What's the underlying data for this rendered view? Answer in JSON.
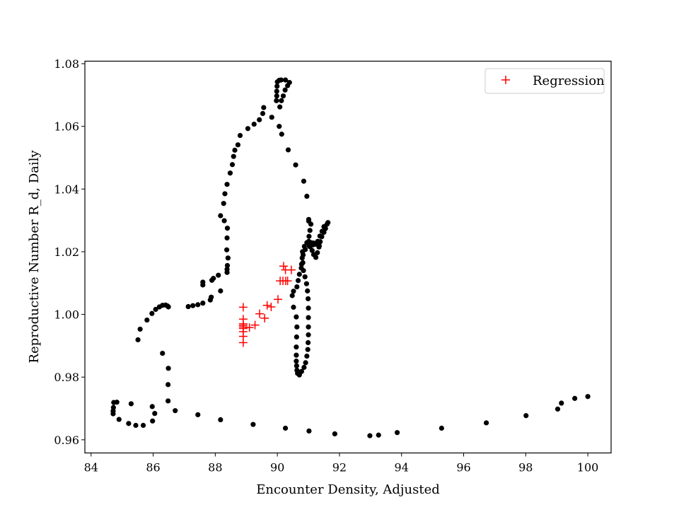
{
  "chart_data": {
    "type": "scatter",
    "title": "",
    "xlabel": "Encounter Density, Adjusted",
    "ylabel": "Reproductive Number R_d, Daily",
    "xlim": [
      83.8,
      100.75
    ],
    "ylim": [
      0.9558,
      1.0808
    ],
    "xticks": [
      84,
      86,
      88,
      90,
      92,
      94,
      96,
      98,
      100
    ],
    "yticks": [
      0.96,
      0.98,
      1.0,
      1.02,
      1.04,
      1.06,
      1.08
    ],
    "xtick_labels": [
      "84",
      "86",
      "88",
      "90",
      "92",
      "94",
      "96",
      "98",
      "100"
    ],
    "ytick_labels": [
      "0.96",
      "0.98",
      "1.00",
      "1.02",
      "1.04",
      "1.06",
      "1.08"
    ],
    "grid": false,
    "legend": {
      "position": "top-right",
      "entries": [
        "Regression"
      ]
    },
    "series": [
      {
        "marker": "dot",
        "color": "#000000",
        "points": [
          [
            100.0,
            0.9738
          ],
          [
            99.58,
            0.9732
          ],
          [
            99.15,
            0.9717
          ],
          [
            99.03,
            0.9698
          ],
          [
            98.01,
            0.9677
          ],
          [
            96.73,
            0.9654
          ],
          [
            95.29,
            0.9637
          ],
          [
            93.86,
            0.9623
          ],
          [
            93.26,
            0.9615
          ],
          [
            92.98,
            0.9613
          ],
          [
            91.85,
            0.9619
          ],
          [
            91.02,
            0.9628
          ],
          [
            90.26,
            0.9637
          ],
          [
            89.22,
            0.9649
          ],
          [
            88.17,
            0.9664
          ],
          [
            87.44,
            0.968
          ],
          [
            86.71,
            0.9693
          ],
          [
            86.48,
            0.9724
          ],
          [
            86.05,
            0.9684
          ],
          [
            85.98,
            0.966
          ],
          [
            85.97,
            0.9706
          ],
          [
            85.68,
            0.9646
          ],
          [
            85.44,
            0.9646
          ],
          [
            85.29,
            0.9715
          ],
          [
            85.21,
            0.9652
          ],
          [
            84.9,
            0.9665
          ],
          [
            84.83,
            0.972
          ],
          [
            84.73,
            0.9719
          ],
          [
            84.72,
            0.9703
          ],
          [
            84.71,
            0.9692
          ],
          [
            84.71,
            0.9683
          ],
          [
            86.48,
            0.9776
          ],
          [
            86.49,
            0.9828
          ],
          [
            86.3,
            0.9876
          ],
          [
            85.51,
            0.9919
          ],
          [
            85.58,
            0.9953
          ],
          [
            85.8,
            0.9982
          ],
          [
            85.96,
            1.0003
          ],
          [
            86.08,
            1.0016
          ],
          [
            86.2,
            1.0024
          ],
          [
            86.3,
            1.0029
          ],
          [
            86.4,
            1.003
          ],
          [
            86.46,
            1.0027
          ],
          [
            86.49,
            1.0024
          ],
          [
            87.13,
            1.0025
          ],
          [
            87.28,
            1.0028
          ],
          [
            87.44,
            1.0031
          ],
          [
            87.6,
            1.0036
          ],
          [
            87.84,
            1.0046
          ],
          [
            87.87,
            1.0055
          ],
          [
            88.17,
            1.0075
          ],
          [
            87.6,
            1.0094
          ],
          [
            87.6,
            1.0103
          ],
          [
            87.89,
            1.0109
          ],
          [
            87.94,
            1.0115
          ],
          [
            88.1,
            1.0125
          ],
          [
            88.38,
            1.0134
          ],
          [
            88.38,
            1.0144
          ],
          [
            88.39,
            1.0156
          ],
          [
            88.41,
            1.018
          ],
          [
            88.37,
            1.0206
          ],
          [
            88.38,
            1.0244
          ],
          [
            88.39,
            1.0275
          ],
          [
            88.29,
            1.0299
          ],
          [
            88.17,
            1.0315
          ],
          [
            88.27,
            1.0354
          ],
          [
            88.31,
            1.0385
          ],
          [
            88.38,
            1.0415
          ],
          [
            88.48,
            1.0451
          ],
          [
            88.55,
            1.0478
          ],
          [
            88.59,
            1.0504
          ],
          [
            88.63,
            1.0524
          ],
          [
            88.73,
            1.0541
          ],
          [
            88.8,
            1.0571
          ],
          [
            89.05,
            1.0593
          ],
          [
            89.25,
            1.0607
          ],
          [
            89.42,
            1.0621
          ],
          [
            89.53,
            1.0641
          ],
          [
            89.56,
            1.066
          ],
          [
            90.06,
            1.06
          ],
          [
            90.14,
            1.0575
          ],
          [
            89.82,
            1.0629
          ],
          [
            89.97,
            1.0682
          ],
          [
            89.98,
            1.0697
          ],
          [
            89.98,
            1.0712
          ],
          [
            89.99,
            1.0728
          ],
          [
            90.0,
            1.0742
          ],
          [
            90.06,
            1.0747
          ],
          [
            90.12,
            1.0748
          ],
          [
            90.26,
            1.0748
          ],
          [
            90.39,
            1.074
          ],
          [
            90.33,
            1.073
          ],
          [
            90.25,
            1.0716
          ],
          [
            90.19,
            1.0697
          ],
          [
            90.13,
            1.0682
          ],
          [
            90.08,
            1.0662
          ],
          [
            90.35,
            1.0525
          ],
          [
            90.59,
            1.0477
          ],
          [
            90.85,
            1.0425
          ],
          [
            90.95,
            1.0377
          ],
          [
            91.01,
            1.0298
          ],
          [
            91.01,
            1.0303
          ],
          [
            91.08,
            1.0288
          ],
          [
            91.05,
            1.0268
          ],
          [
            91.02,
            1.0249
          ],
          [
            91.01,
            1.0233
          ],
          [
            91.05,
            1.0216
          ],
          [
            91.12,
            1.0204
          ],
          [
            91.17,
            1.0191
          ],
          [
            91.24,
            1.0182
          ],
          [
            91.29,
            1.0197
          ],
          [
            91.34,
            1.0215
          ],
          [
            91.38,
            1.0232
          ],
          [
            91.43,
            1.0248
          ],
          [
            91.5,
            1.0262
          ],
          [
            91.55,
            1.0274
          ],
          [
            91.6,
            1.0288
          ],
          [
            91.63,
            1.0293
          ],
          [
            91.5,
            1.028
          ],
          [
            91.44,
            1.0265
          ],
          [
            91.37,
            1.025
          ],
          [
            91.3,
            1.0233
          ],
          [
            91.23,
            1.0224
          ],
          [
            91.16,
            1.0228
          ],
          [
            91.08,
            1.0229
          ],
          [
            90.95,
            1.0229
          ],
          [
            90.87,
            1.0217
          ],
          [
            90.81,
            1.02
          ],
          [
            90.8,
            1.018
          ],
          [
            90.78,
            1.016
          ],
          [
            90.77,
            1.0148
          ],
          [
            90.71,
            1.0128
          ],
          [
            90.67,
            1.0108
          ],
          [
            90.63,
            1.0088
          ],
          [
            90.52,
            1.0074
          ],
          [
            90.48,
            1.006
          ],
          [
            90.52,
            1.0023
          ],
          [
            90.61,
            0.9992
          ],
          [
            90.63,
            0.996
          ],
          [
            90.62,
            0.9928
          ],
          [
            90.61,
            0.9896
          ],
          [
            90.61,
            0.987
          ],
          [
            90.61,
            0.9851
          ],
          [
            90.62,
            0.9836
          ],
          [
            90.63,
            0.9822
          ],
          [
            90.65,
            0.9812
          ],
          [
            90.71,
            0.9807
          ],
          [
            90.78,
            0.9818
          ],
          [
            90.86,
            0.9831
          ],
          [
            90.91,
            0.9846
          ],
          [
            90.95,
            0.9867
          ],
          [
            90.98,
            0.9888
          ],
          [
            90.99,
            0.991
          ],
          [
            91.0,
            0.9935
          ],
          [
            91.0,
            0.996
          ],
          [
            91.0,
            0.999
          ],
          [
            91.0,
            1.002
          ],
          [
            90.99,
            1.005
          ],
          [
            90.97,
            1.0075
          ],
          [
            90.94,
            1.0098
          ],
          [
            90.89,
            1.012
          ],
          [
            90.84,
            1.014
          ],
          [
            90.82,
            1.0165
          ],
          [
            90.83,
            1.019
          ],
          [
            90.9,
            1.0207
          ],
          [
            91.03,
            1.0218
          ],
          [
            91.15,
            1.0222
          ],
          [
            91.26,
            1.0226
          ],
          [
            91.35,
            1.0219
          ]
        ]
      },
      {
        "name": "Regression",
        "marker": "plus",
        "color": "#ff0000",
        "points": [
          [
            88.9,
            0.991
          ],
          [
            88.9,
            0.993
          ],
          [
            88.9,
            0.9945
          ],
          [
            88.9,
            0.9955
          ],
          [
            88.9,
            0.996
          ],
          [
            88.9,
            0.9965
          ],
          [
            88.9,
            0.997
          ],
          [
            88.9,
            0.9985
          ],
          [
            88.9,
            1.0023
          ],
          [
            89.1,
            0.9958
          ],
          [
            89.28,
            0.9966
          ],
          [
            89.43,
            1.0002
          ],
          [
            89.59,
            0.9988
          ],
          [
            89.67,
            1.0029
          ],
          [
            89.8,
            1.0024
          ],
          [
            90.02,
            1.0048
          ],
          [
            90.09,
            1.0107
          ],
          [
            90.18,
            1.0107
          ],
          [
            90.27,
            1.0107
          ],
          [
            90.2,
            1.0154
          ],
          [
            90.26,
            1.0142
          ],
          [
            90.33,
            1.0107
          ],
          [
            90.45,
            1.0142
          ]
        ]
      }
    ]
  }
}
